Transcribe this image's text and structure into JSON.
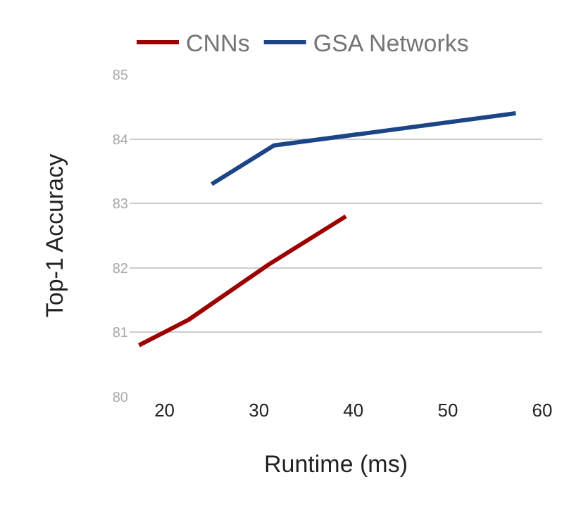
{
  "chart_data": {
    "type": "line",
    "xlabel": "Runtime (ms)",
    "ylabel": "Top-1 Accuracy",
    "xlim": [
      16.3,
      60
    ],
    "xticks": [
      20,
      30,
      40,
      50,
      60
    ],
    "ylim": [
      80,
      85
    ],
    "yticks": [
      80,
      81,
      82,
      83,
      84,
      85
    ],
    "grid": "y",
    "legend": "top left",
    "marker": "none",
    "line_style": "solid",
    "series": [
      {
        "name": "CNNs",
        "color": "#9c0000",
        "x": [
          17.3,
          22.6,
          31,
          39.2
        ],
        "values": [
          80.8,
          81.2,
          82.05,
          82.8
        ]
      },
      {
        "name": "GSA Networks",
        "color": "#1c4587",
        "x": [
          25,
          31.6,
          57.2
        ],
        "values": [
          83.3,
          83.9,
          84.4
        ]
      }
    ]
  }
}
